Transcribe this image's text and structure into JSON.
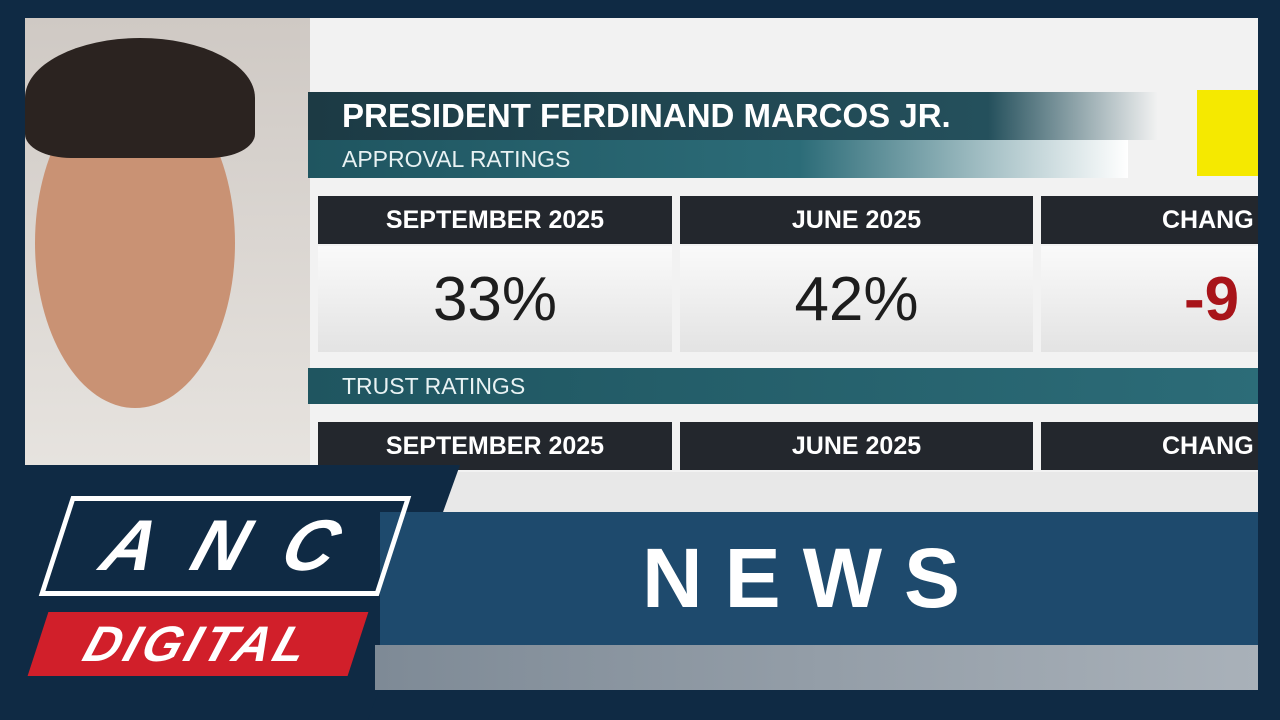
{
  "graphic": {
    "title": "PRESIDENT FERDINAND MARCOS JR.",
    "approval": {
      "heading": "APPROVAL RATINGS",
      "columns": [
        "SEPTEMBER 2025",
        "JUNE 2025",
        "CHANG"
      ],
      "values": [
        "33%",
        "42%",
        "-9"
      ]
    },
    "trust": {
      "heading": "TRUST RATINGS",
      "columns": [
        "SEPTEMBER 2025",
        "JUNE 2025",
        "CHANG"
      ]
    }
  },
  "banner": {
    "logo_top": "ANC",
    "logo_bottom": "DIGITAL",
    "label": "NEWS"
  }
}
